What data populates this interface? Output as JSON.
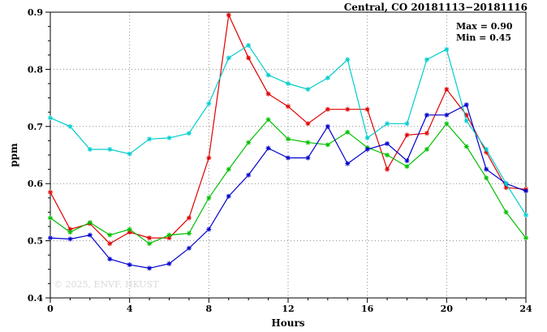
{
  "title": "Central, CO 20181113−20181116",
  "annotation": {
    "max_label": "Max = 0.90",
    "min_label": "Min = 0.45"
  },
  "watermark": "© 2025, ENVF, HKUST",
  "chart_data": {
    "type": "line",
    "title": "Central, CO 20181113−20181116",
    "xlabel": "Hours",
    "ylabel": "ppm",
    "xlim": [
      0,
      24
    ],
    "ylim": [
      0.4,
      0.9
    ],
    "x_ticks": [
      0,
      4,
      8,
      12,
      16,
      20,
      24
    ],
    "y_ticks": [
      0.4,
      0.5,
      0.6,
      0.7,
      0.8,
      0.9
    ],
    "grid": true,
    "legend": "none",
    "max": 0.9,
    "min": 0.45,
    "x": [
      0,
      1,
      2,
      3,
      4,
      5,
      6,
      7,
      8,
      9,
      10,
      11,
      12,
      13,
      14,
      15,
      16,
      17,
      18,
      19,
      20,
      21,
      22,
      23,
      24
    ],
    "series": [
      {
        "name": "red",
        "color": "#e00000",
        "values": [
          0.585,
          0.52,
          0.53,
          0.495,
          0.515,
          0.505,
          0.505,
          0.54,
          0.645,
          0.895,
          0.82,
          0.757,
          0.735,
          0.705,
          0.73,
          0.73,
          0.73,
          0.625,
          0.685,
          0.688,
          0.765,
          0.72,
          0.655,
          0.593,
          0.59
        ]
      },
      {
        "name": "green",
        "color": "#00c000",
        "values": [
          0.54,
          0.515,
          0.532,
          0.51,
          0.52,
          0.495,
          0.51,
          0.513,
          0.575,
          0.625,
          0.672,
          0.712,
          0.678,
          0.672,
          0.668,
          0.69,
          0.663,
          0.65,
          0.63,
          0.66,
          0.705,
          0.665,
          0.61,
          0.55,
          0.505
        ]
      },
      {
        "name": "blue",
        "color": "#0000cd",
        "values": [
          0.505,
          0.503,
          0.51,
          0.468,
          0.458,
          0.452,
          0.46,
          0.487,
          0.52,
          0.578,
          0.615,
          0.662,
          0.645,
          0.645,
          0.7,
          0.635,
          0.66,
          0.67,
          0.64,
          0.72,
          0.72,
          0.738,
          0.625,
          0.6,
          0.587
        ]
      },
      {
        "name": "cyan",
        "color": "#00cdcd",
        "values": [
          0.715,
          0.7,
          0.66,
          0.66,
          0.652,
          0.678,
          0.68,
          0.688,
          0.74,
          0.82,
          0.842,
          0.79,
          0.775,
          0.765,
          0.785,
          0.817,
          0.68,
          0.705,
          0.705,
          0.817,
          0.835,
          0.71,
          0.66,
          0.6,
          0.545
        ]
      }
    ]
  }
}
